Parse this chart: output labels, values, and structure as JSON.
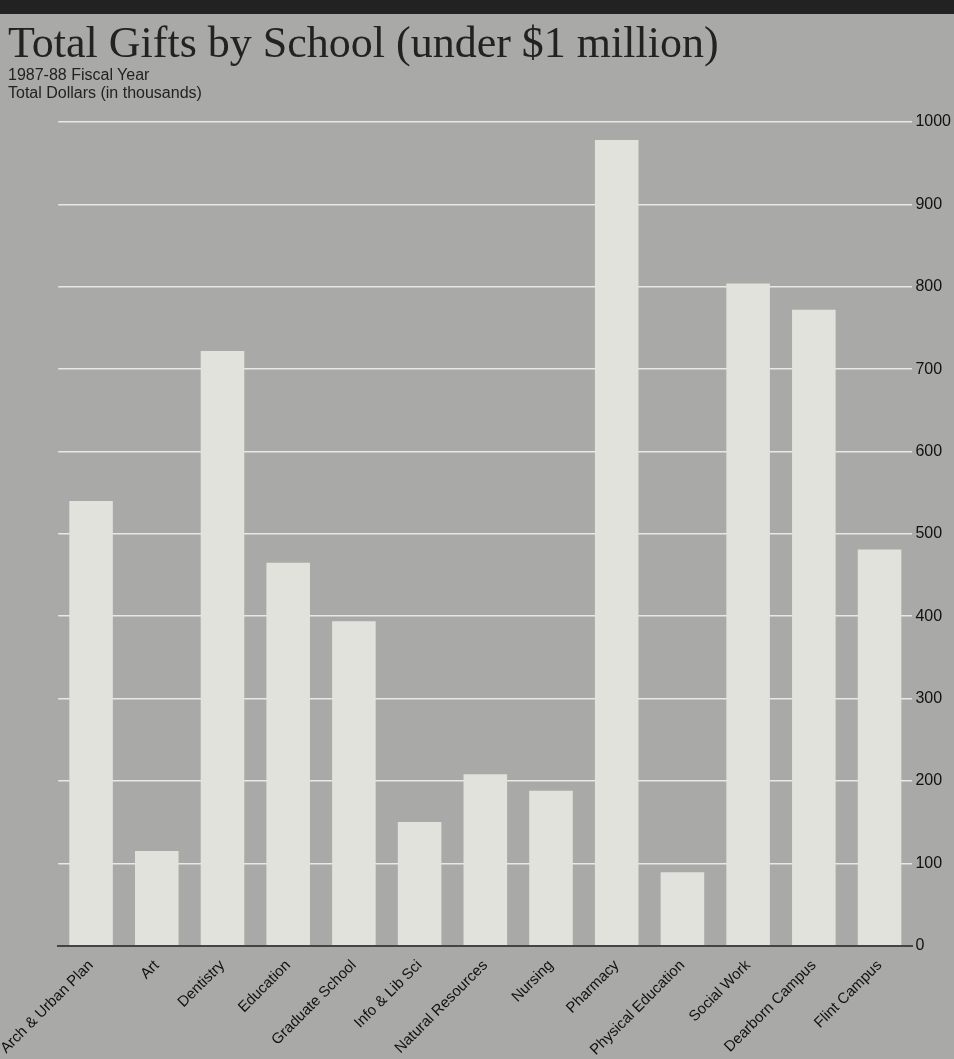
{
  "chart_data": {
    "type": "bar",
    "title": "Total Gifts by School (under $1 million)",
    "subtitle": "1987-88 Fiscal Year",
    "ylabel": "Total Dollars (in thousands)",
    "categories": [
      "Arch & Urban Plan",
      "Art",
      "Dentistry",
      "Education",
      "Graduate School",
      "Info & Lib Sci",
      "Natural Resources",
      "Nursing",
      "Pharmacy",
      "Physical Education",
      "Social Work",
      "Dearborn Campus",
      "Flint Campus"
    ],
    "values": [
      540,
      115,
      722,
      465,
      394,
      150,
      208,
      188,
      978,
      89,
      804,
      772,
      481
    ],
    "color": "#e2e2dc",
    "ylim": [
      0,
      1000
    ],
    "yticks": [
      0,
      100,
      200,
      300,
      400,
      500,
      600,
      700,
      800,
      900,
      1000
    ],
    "grid": "y"
  }
}
